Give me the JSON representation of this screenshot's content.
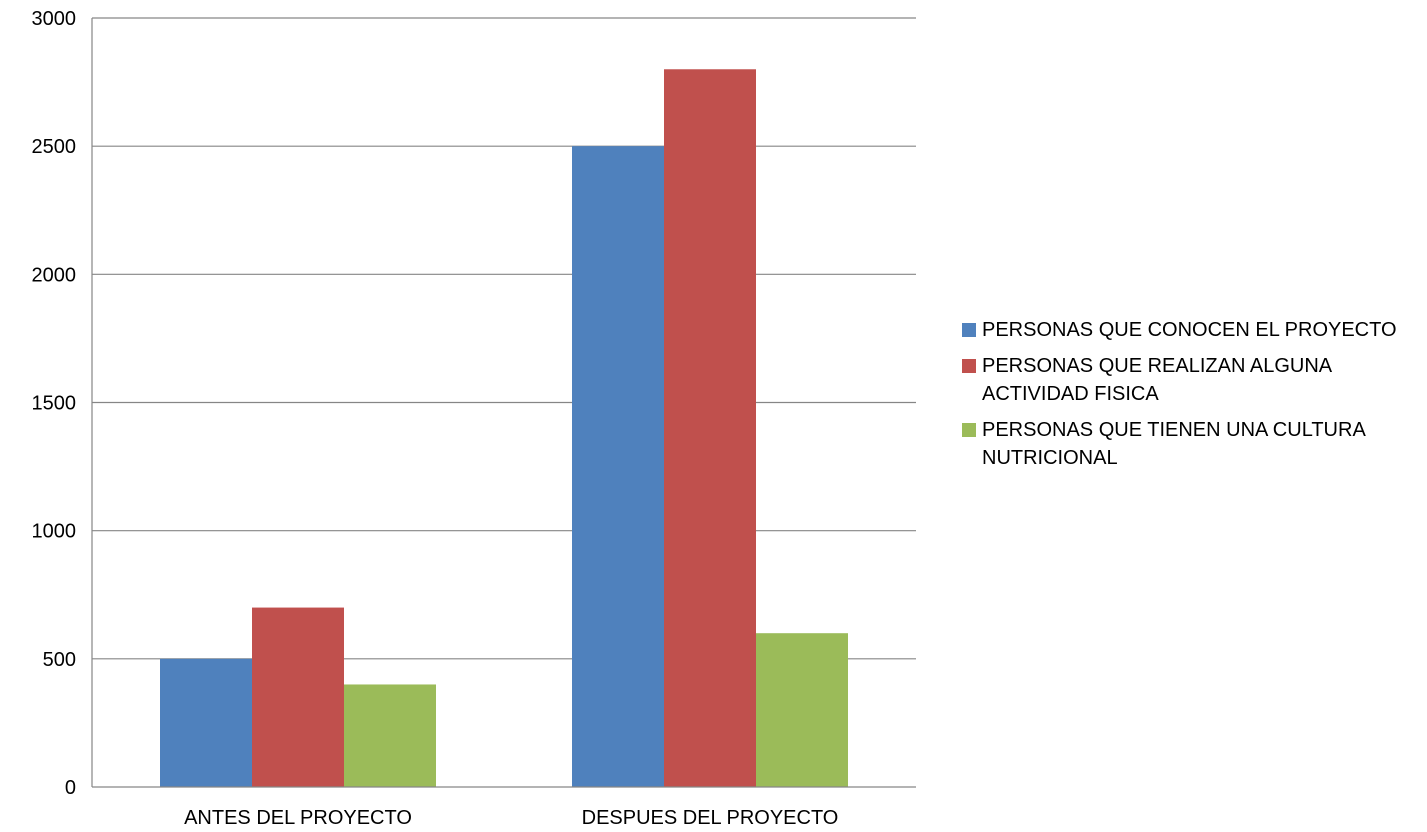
{
  "chart_data": {
    "type": "bar",
    "title": "",
    "xlabel": "",
    "ylabel": "",
    "categories": [
      "ANTES DEL PROYECTO",
      "DESPUES DEL PROYECTO"
    ],
    "series": [
      {
        "name": "PERSONAS QUE CONOCEN EL PROYECTO",
        "color": "#4F81BD",
        "values": [
          500,
          2500
        ]
      },
      {
        "name": "PERSONAS QUE REALIZAN ALGUNA ACTIVIDAD FISICA",
        "color": "#C0504D",
        "values": [
          700,
          2800
        ]
      },
      {
        "name": "PERSONAS QUE TIENEN UNA CULTURA NUTRICIONAL",
        "color": "#9BBB59",
        "values": [
          400,
          600
        ]
      }
    ],
    "ylim": [
      0,
      3000
    ],
    "yticks": [
      "0",
      "500",
      "1000",
      "1500",
      "2000",
      "2500",
      "3000"
    ],
    "grid": true,
    "legend_position": "right"
  }
}
